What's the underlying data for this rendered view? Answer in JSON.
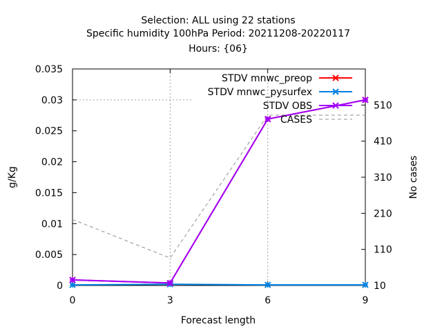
{
  "chart_data": {
    "type": "line",
    "title_lines": [
      "Selection: ALL using    22 stations",
      "Specific humidity 100hPa   Period: 20211208-20220117",
      "Hours: {06}"
    ],
    "xlabel": "Forecast length",
    "ylabel": "g/Kg",
    "y2label": "No cases",
    "x_ticks": [
      "0",
      "3",
      "6",
      "9"
    ],
    "y_ticks": [
      "0",
      "0.005",
      "0.01",
      "0.015",
      "0.02",
      "0.025",
      "0.03",
      "0.035"
    ],
    "y2_ticks": [
      "10",
      "110",
      "210",
      "310",
      "410",
      "510"
    ],
    "xlim": [
      0,
      9
    ],
    "ylim": [
      0,
      0.035
    ],
    "y2lim": [
      10,
      610
    ],
    "grid": true,
    "legend_position": "top-right",
    "series": [
      {
        "name": "STDV mnwc_preop",
        "axis": "y",
        "style": "solid",
        "marker": "x",
        "color": "#ff0000",
        "x": [
          0,
          3,
          6,
          9
        ],
        "values": [
          0.0009,
          0.0004,
          0.0269,
          0.03
        ]
      },
      {
        "name": "STDV mnwc_pysurfex",
        "axis": "y",
        "style": "solid",
        "marker": "x",
        "color": "#0080e0",
        "x": [
          0,
          3,
          6,
          9
        ],
        "values": [
          0.0001,
          0.0002,
          0.0001,
          0.0001
        ]
      },
      {
        "name": "STDV OBS",
        "axis": "y",
        "style": "solid",
        "marker": "x",
        "color": "#a000ff",
        "x": [
          0,
          3,
          6,
          9
        ],
        "values": [
          0.0009,
          0.0004,
          0.0269,
          0.03
        ]
      },
      {
        "name": "CASES",
        "axis": "y2",
        "style": "dashed",
        "marker": "none",
        "color": "#909090",
        "x": [
          0,
          3,
          6,
          9
        ],
        "values": [
          193,
          86,
          482,
          482
        ]
      }
    ]
  }
}
